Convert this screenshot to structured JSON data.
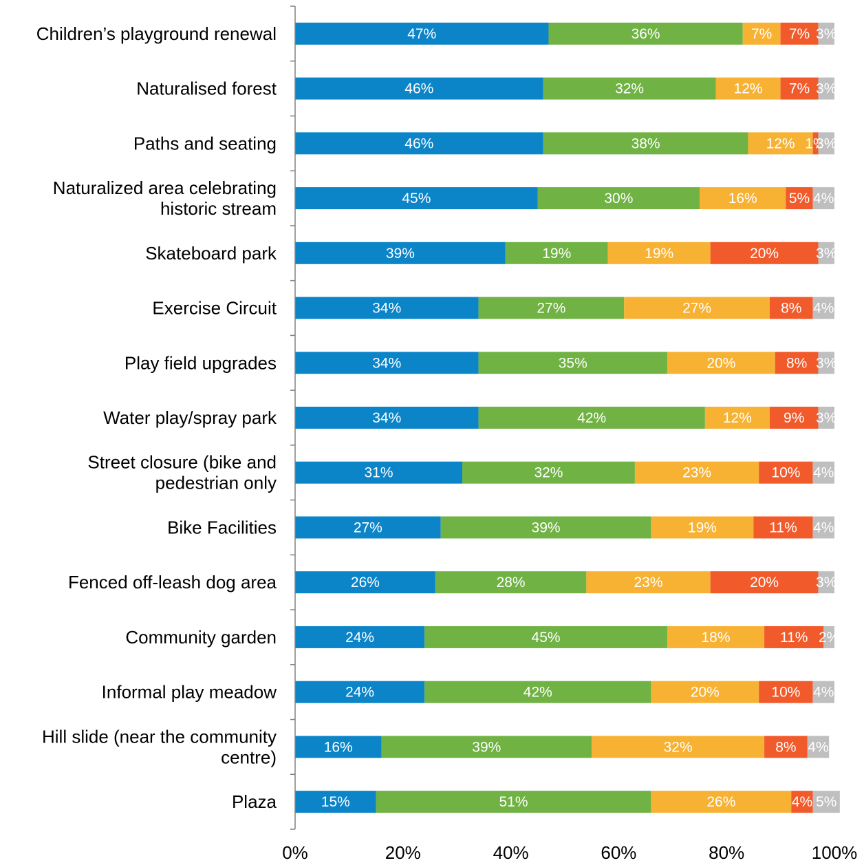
{
  "chart_data": {
    "type": "bar",
    "orientation": "horizontal",
    "stacked": true,
    "title": "",
    "xlabel": "",
    "ylabel": "",
    "xlim": [
      0,
      100
    ],
    "x_tick_labels": [
      "0%",
      "20%",
      "40%",
      "60%",
      "80%",
      "100%"
    ],
    "x_ticks": [
      0,
      20,
      40,
      60,
      80,
      100
    ],
    "grid": false,
    "legend": "none",
    "categories": [
      "Children’s playground renewal",
      "Naturalised forest",
      "Paths and seating",
      "Naturalized area celebrating historic stream",
      "Skateboard park",
      "Exercise Circuit",
      "Play field upgrades",
      "Water play/spray park",
      "Street closure (bike and pedestrian only",
      "Bike Facilities",
      "Fenced off-leash dog area",
      "Community garden",
      "Informal play meadow",
      "Hill slide (near the community centre)",
      "Plaza"
    ],
    "category_lines": [
      [
        "Children’s playground renewal"
      ],
      [
        "Naturalised forest"
      ],
      [
        "Paths and seating"
      ],
      [
        "Naturalized area celebrating",
        "historic stream"
      ],
      [
        "Skateboard park"
      ],
      [
        "Exercise Circuit"
      ],
      [
        "Play field upgrades"
      ],
      [
        "Water play/spray park"
      ],
      [
        "Street closure (bike and",
        "pedestrian only"
      ],
      [
        "Bike Facilities"
      ],
      [
        "Fenced off-leash dog area"
      ],
      [
        "Community garden"
      ],
      [
        "Informal play meadow"
      ],
      [
        "Hill slide (near the community",
        "centre)"
      ],
      [
        "Plaza"
      ]
    ],
    "series": [
      {
        "color": "#0C84C8",
        "values": [
          47,
          46,
          46,
          45,
          39,
          34,
          34,
          34,
          31,
          27,
          26,
          24,
          24,
          16,
          15
        ]
      },
      {
        "color": "#70B244",
        "values": [
          36,
          32,
          38,
          30,
          19,
          27,
          35,
          42,
          32,
          39,
          28,
          45,
          42,
          39,
          51
        ]
      },
      {
        "color": "#F7B234",
        "values": [
          7,
          12,
          12,
          16,
          19,
          27,
          20,
          12,
          23,
          19,
          23,
          18,
          20,
          32,
          26
        ]
      },
      {
        "color": "#F15A2B",
        "values": [
          7,
          7,
          1,
          5,
          20,
          8,
          8,
          9,
          10,
          11,
          20,
          11,
          10,
          8,
          4
        ]
      },
      {
        "color": "#BFBFBF",
        "values": [
          3,
          3,
          3,
          4,
          3,
          4,
          3,
          3,
          4,
          4,
          3,
          2,
          4,
          4,
          5
        ]
      }
    ]
  }
}
